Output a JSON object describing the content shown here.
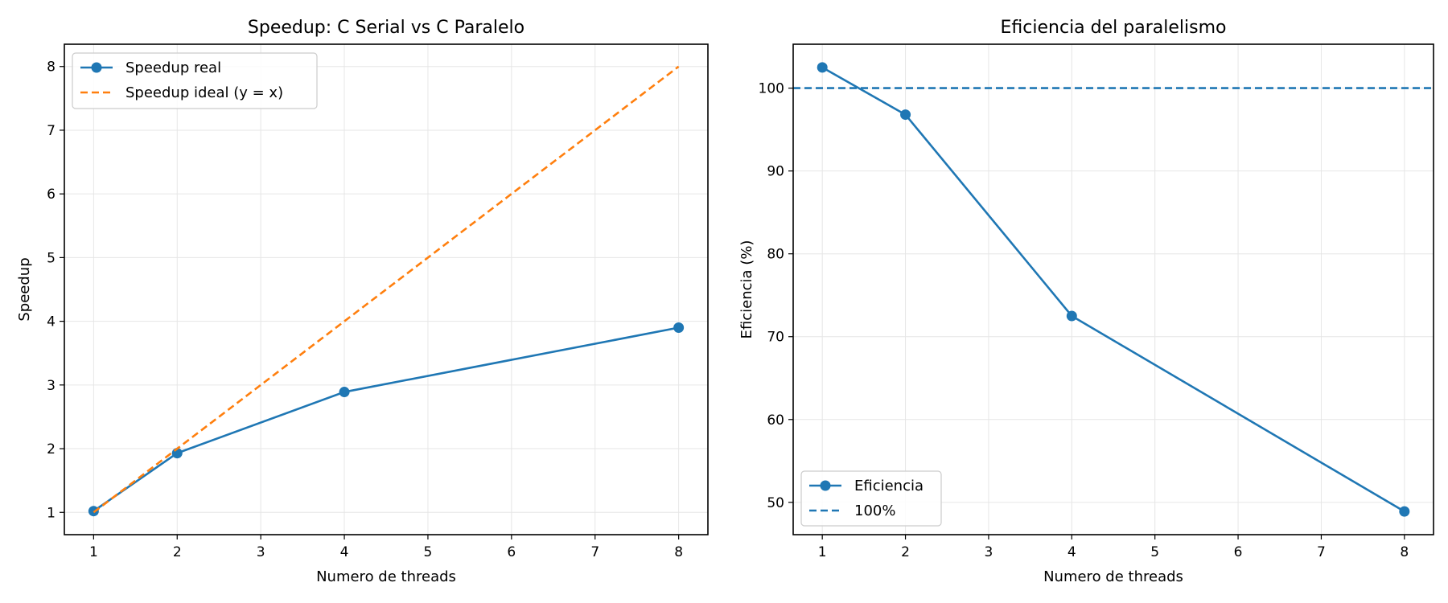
{
  "colors": {
    "real": "#1f77b4",
    "ideal": "#ff7f0e",
    "grid": "#e6e6e6",
    "frame": "#000000"
  },
  "chart_data": [
    {
      "type": "line",
      "title": "Speedup: C Serial vs C Paralelo",
      "xlabel": "Numero de threads",
      "ylabel": "Speedup",
      "xlim": [
        0.65,
        8.35
      ],
      "ylim": [
        0.65,
        8.35
      ],
      "xticks": [
        1,
        2,
        3,
        4,
        5,
        6,
        7,
        8
      ],
      "yticks": [
        1,
        2,
        3,
        4,
        5,
        6,
        7,
        8
      ],
      "grid": true,
      "legend_position": "top-left",
      "series": [
        {
          "name": "Speedup real",
          "style": "solid-markers",
          "color": "#1f77b4",
          "x": [
            1,
            2,
            4,
            8
          ],
          "y": [
            1.02,
            1.93,
            2.89,
            3.9
          ]
        },
        {
          "name": "Speedup ideal (y = x)",
          "style": "dashed",
          "color": "#ff7f0e",
          "x": [
            1,
            2,
            4,
            8
          ],
          "y": [
            1,
            2,
            4,
            8
          ]
        }
      ]
    },
    {
      "type": "line",
      "title": "Eficiencia del paralelismo",
      "xlabel": "Numero de threads",
      "ylabel": "Eficiencia (%)",
      "xlim": [
        0.65,
        8.35
      ],
      "ylim": [
        46.1,
        105.3
      ],
      "xticks": [
        1,
        2,
        3,
        4,
        5,
        6,
        7,
        8
      ],
      "yticks": [
        50,
        60,
        70,
        80,
        90,
        100
      ],
      "grid": true,
      "legend_position": "bottom-left",
      "series": [
        {
          "name": "Eficiencia",
          "style": "solid-markers",
          "color": "#1f77b4",
          "x": [
            1,
            2,
            4,
            8
          ],
          "y": [
            102.5,
            96.8,
            72.5,
            48.9
          ]
        },
        {
          "name": "100%",
          "style": "hline-dashed",
          "color": "#1f77b4",
          "y_const": 100
        }
      ]
    }
  ]
}
